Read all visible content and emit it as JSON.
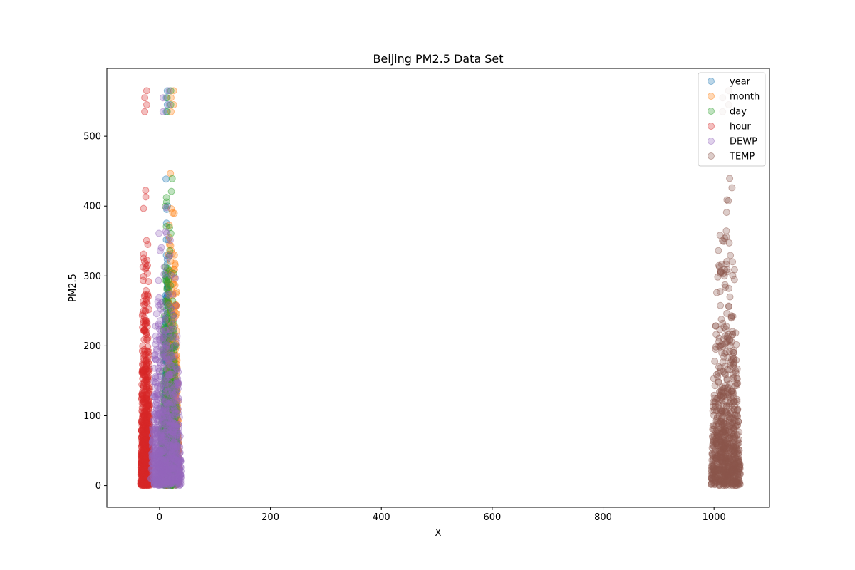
{
  "chart_data": {
    "type": "scatter",
    "title": "Beijing PM2.5 Data Set",
    "xlabel": "X",
    "ylabel": "PM2.5",
    "xlim": [
      -95,
      1100
    ],
    "ylim": [
      -31,
      597
    ],
    "xticks": [
      0,
      200,
      400,
      600,
      800,
      1000
    ],
    "yticks": [
      0,
      100,
      200,
      300,
      400,
      500
    ],
    "grid": false,
    "legend_position": "upper right",
    "marker_alpha": 0.3,
    "series": [
      {
        "name": "year",
        "color": "#1f77b4",
        "x_center": 13,
        "x_halfwidth": 5,
        "y_max": 565
      },
      {
        "name": "month",
        "color": "#ff7f0e",
        "x_center": 23,
        "x_halfwidth": 12,
        "y_max": 565
      },
      {
        "name": "day",
        "color": "#2ca02c",
        "x_center": 17,
        "x_halfwidth": 16,
        "y_max": 565
      },
      {
        "name": "hour",
        "color": "#d62728",
        "x_center": -25,
        "x_halfwidth": 9,
        "y_max": 565
      },
      {
        "name": "DEWP",
        "color": "#9467bd",
        "x_center": 12,
        "x_halfwidth": 28,
        "y_max": 565
      },
      {
        "name": "TEMP",
        "color": "#8c564b",
        "x_center": 1021,
        "x_halfwidth": 27,
        "y_max": 565
      }
    ]
  }
}
